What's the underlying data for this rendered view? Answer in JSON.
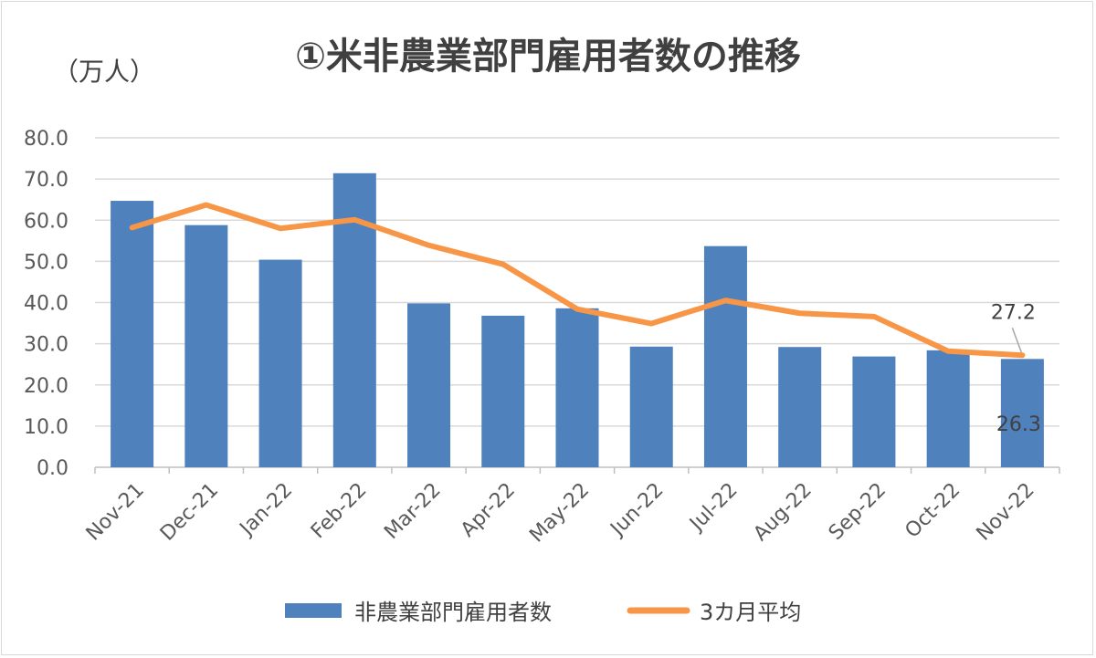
{
  "chart_data": {
    "type": "bar",
    "title": "①米非農業部門雇用者数の推移",
    "ylabel": "（万人）",
    "xlabel": "",
    "ylim": [
      0,
      80
    ],
    "ytick_step": 10,
    "y_tick_labels": [
      "0.0",
      "10.0",
      "20.0",
      "30.0",
      "40.0",
      "50.0",
      "60.0",
      "70.0",
      "80.0"
    ],
    "grid": true,
    "legend_position": "bottom",
    "categories": [
      "Nov-21",
      "Dec-21",
      "Jan-22",
      "Feb-22",
      "Mar-22",
      "Apr-22",
      "May-22",
      "Jun-22",
      "Jul-22",
      "Aug-22",
      "Sep-22",
      "Oct-22",
      "Nov-22"
    ],
    "series": [
      {
        "name": "非農業部門雇用者数",
        "type": "bar",
        "color": "#4f81bd",
        "values": [
          64.7,
          58.8,
          50.4,
          71.4,
          39.8,
          36.8,
          38.6,
          29.3,
          53.7,
          29.2,
          26.9,
          28.4,
          26.3
        ]
      },
      {
        "name": "3カ月平均",
        "type": "line",
        "color": "#f79646",
        "values": [
          58.2,
          63.7,
          58.0,
          60.1,
          53.9,
          49.3,
          38.4,
          34.9,
          40.5,
          37.4,
          36.6,
          28.2,
          27.2
        ]
      }
    ],
    "annotations": [
      {
        "series": "3カ月平均",
        "category": "Nov-22",
        "label": "27.2"
      },
      {
        "series": "非農業部門雇用者数",
        "category": "Nov-22",
        "label": "26.3"
      }
    ]
  }
}
